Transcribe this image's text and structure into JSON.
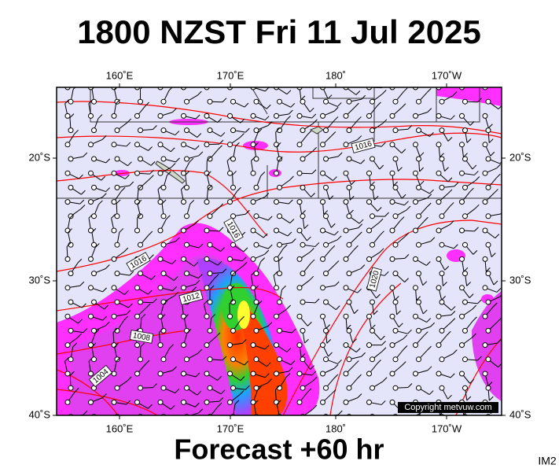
{
  "title": "1800 NZST Fri 11 Jul 2025",
  "footer": "Forecast +60 hr",
  "corner_label": "IM2",
  "copyright": "Copyright metvuw.com",
  "longitude_labels": [
    "160˚E",
    "170˚E",
    "180˚",
    "170˚W"
  ],
  "latitude_labels": [
    "20˚S",
    "30˚S",
    "40˚S"
  ],
  "isobar_labels": [
    "1016",
    "1016",
    "1016",
    "1012",
    "1008",
    "1004",
    "1020"
  ]
}
